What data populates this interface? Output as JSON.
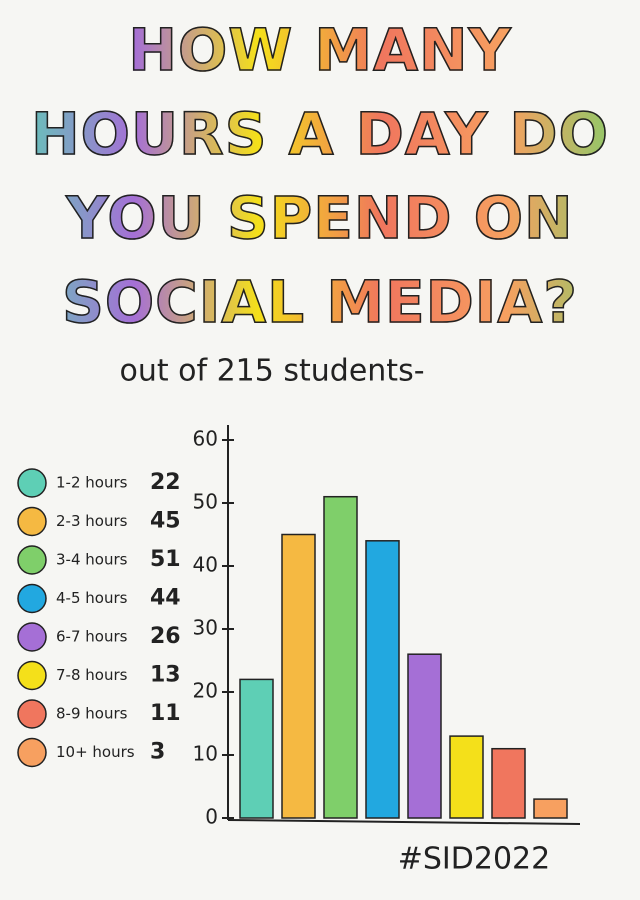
{
  "chart_data": {
    "type": "bar",
    "title": "HOW MANY HOURS A DAY DO YOU SPEND ON SOCIAL MEDIA?",
    "subtitle": "out of 215 students-",
    "footer": "#SID2022",
    "categories": [
      "1-2 hours",
      "2-3 hours",
      "3-4 hours",
      "4-5 hours",
      "6-7 hours",
      "7-8 hours",
      "8-9 hours",
      "10+ hours"
    ],
    "values": [
      22,
      45,
      51,
      44,
      26,
      13,
      11,
      3
    ],
    "colors": [
      "#5ecfb5",
      "#f5b942",
      "#7fcf6a",
      "#22a8e0",
      "#a56fd6",
      "#f4e01a",
      "#f0765e",
      "#f7a060"
    ],
    "ylim": [
      0,
      60
    ],
    "yticks": [
      0,
      10,
      20,
      30,
      40,
      50,
      60
    ],
    "grid": false
  }
}
